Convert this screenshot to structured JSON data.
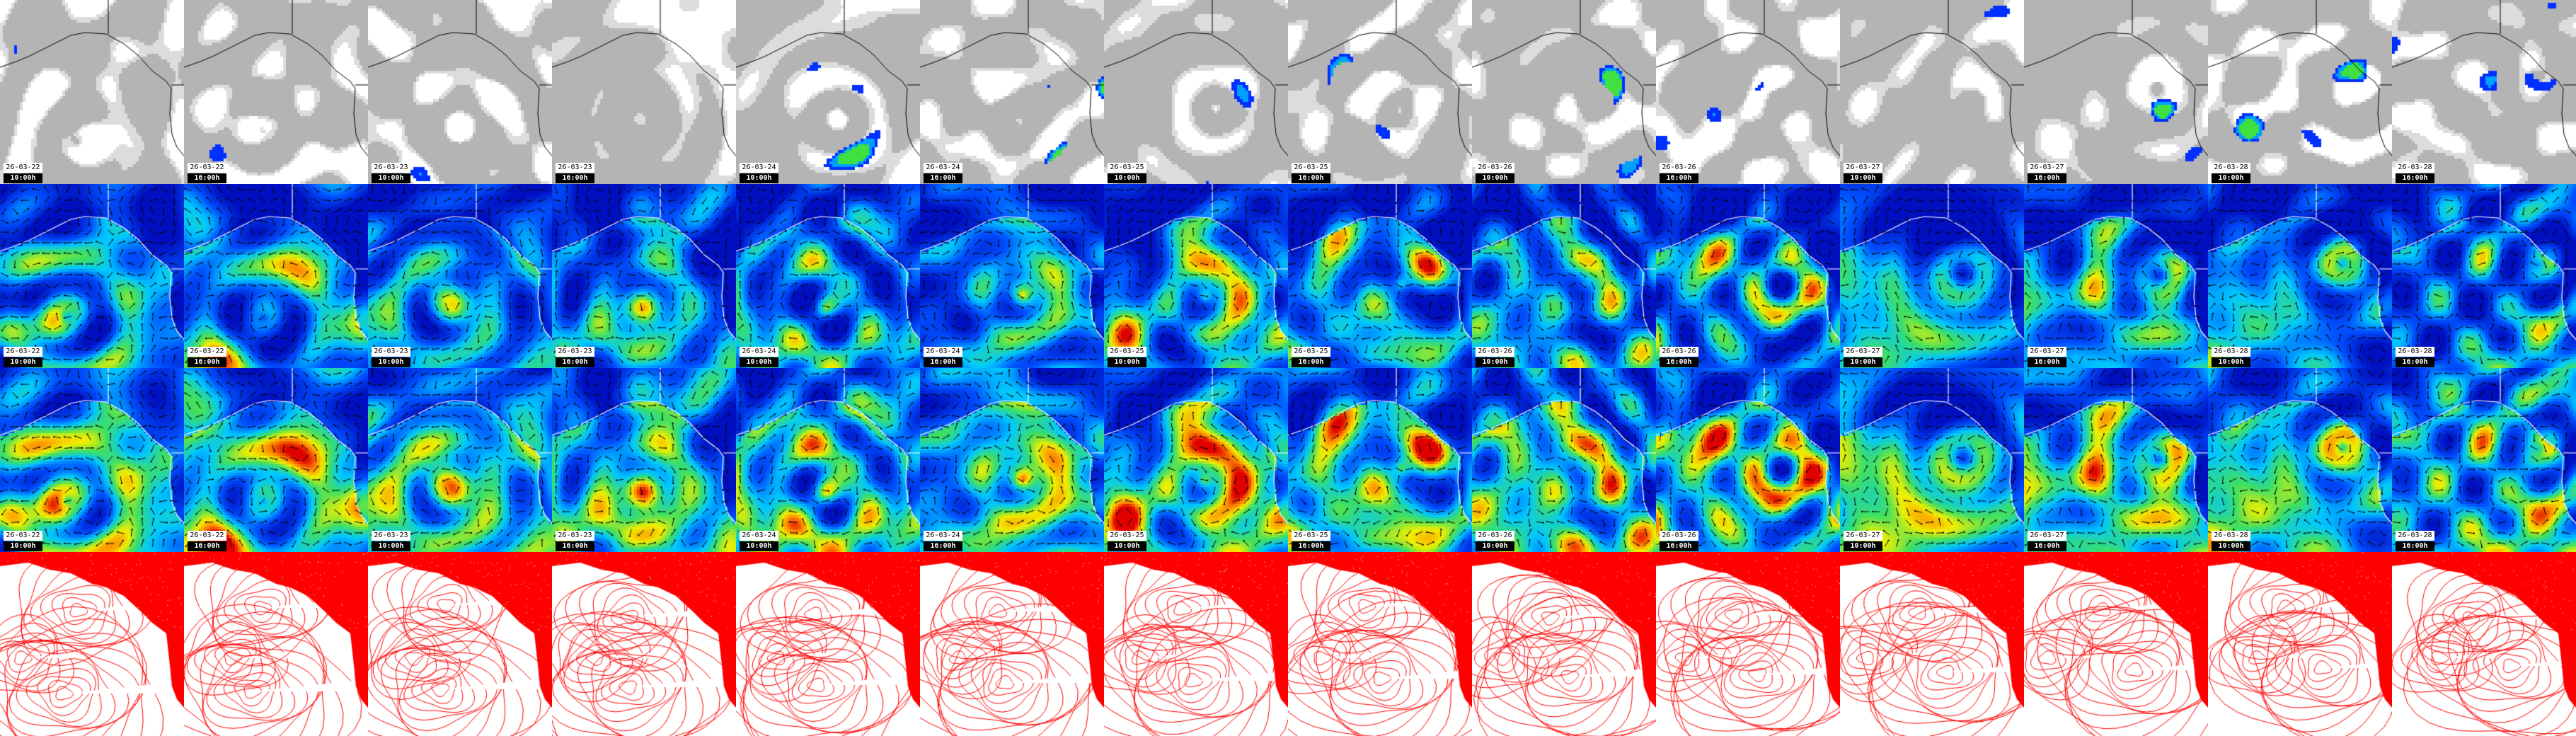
{
  "columns": [
    {
      "date": "26-03-22",
      "time": "10:00h"
    },
    {
      "date": "26-03-22",
      "time": "16:00h"
    },
    {
      "date": "26-03-23",
      "time": "10:00h"
    },
    {
      "date": "26-03-23",
      "time": "16:00h"
    },
    {
      "date": "26-03-24",
      "time": "10:00h"
    },
    {
      "date": "26-03-24",
      "time": "16:00h"
    },
    {
      "date": "26-03-25",
      "time": "10:00h"
    },
    {
      "date": "26-03-25",
      "time": "16:00h"
    },
    {
      "date": "26-03-26",
      "time": "10:00h"
    },
    {
      "date": "26-03-26",
      "time": "16:00h"
    },
    {
      "date": "26-03-27",
      "time": "10:00h"
    },
    {
      "date": "26-03-27",
      "time": "16:00h"
    },
    {
      "date": "26-03-28",
      "time": "10:00h"
    },
    {
      "date": "26-03-28",
      "time": "16:00h"
    }
  ],
  "rows": [
    {
      "kind": "satellite-precipitation",
      "labeled": true
    },
    {
      "kind": "wind",
      "labeled": true
    },
    {
      "kind": "wind-gust",
      "labeled": true
    },
    {
      "kind": "pressure-isobars",
      "labeled": false
    }
  ],
  "colors": {
    "cloud_gray": "#b4b4b4",
    "cloud_white": "#ffffff",
    "precip_blue": "#0030ff",
    "wind_low": "#0010c0",
    "wind_mid": "#00c8ff",
    "wind_high": "#f0f000",
    "wind_max": "#e00000",
    "isobar_red": "#ff0000"
  }
}
